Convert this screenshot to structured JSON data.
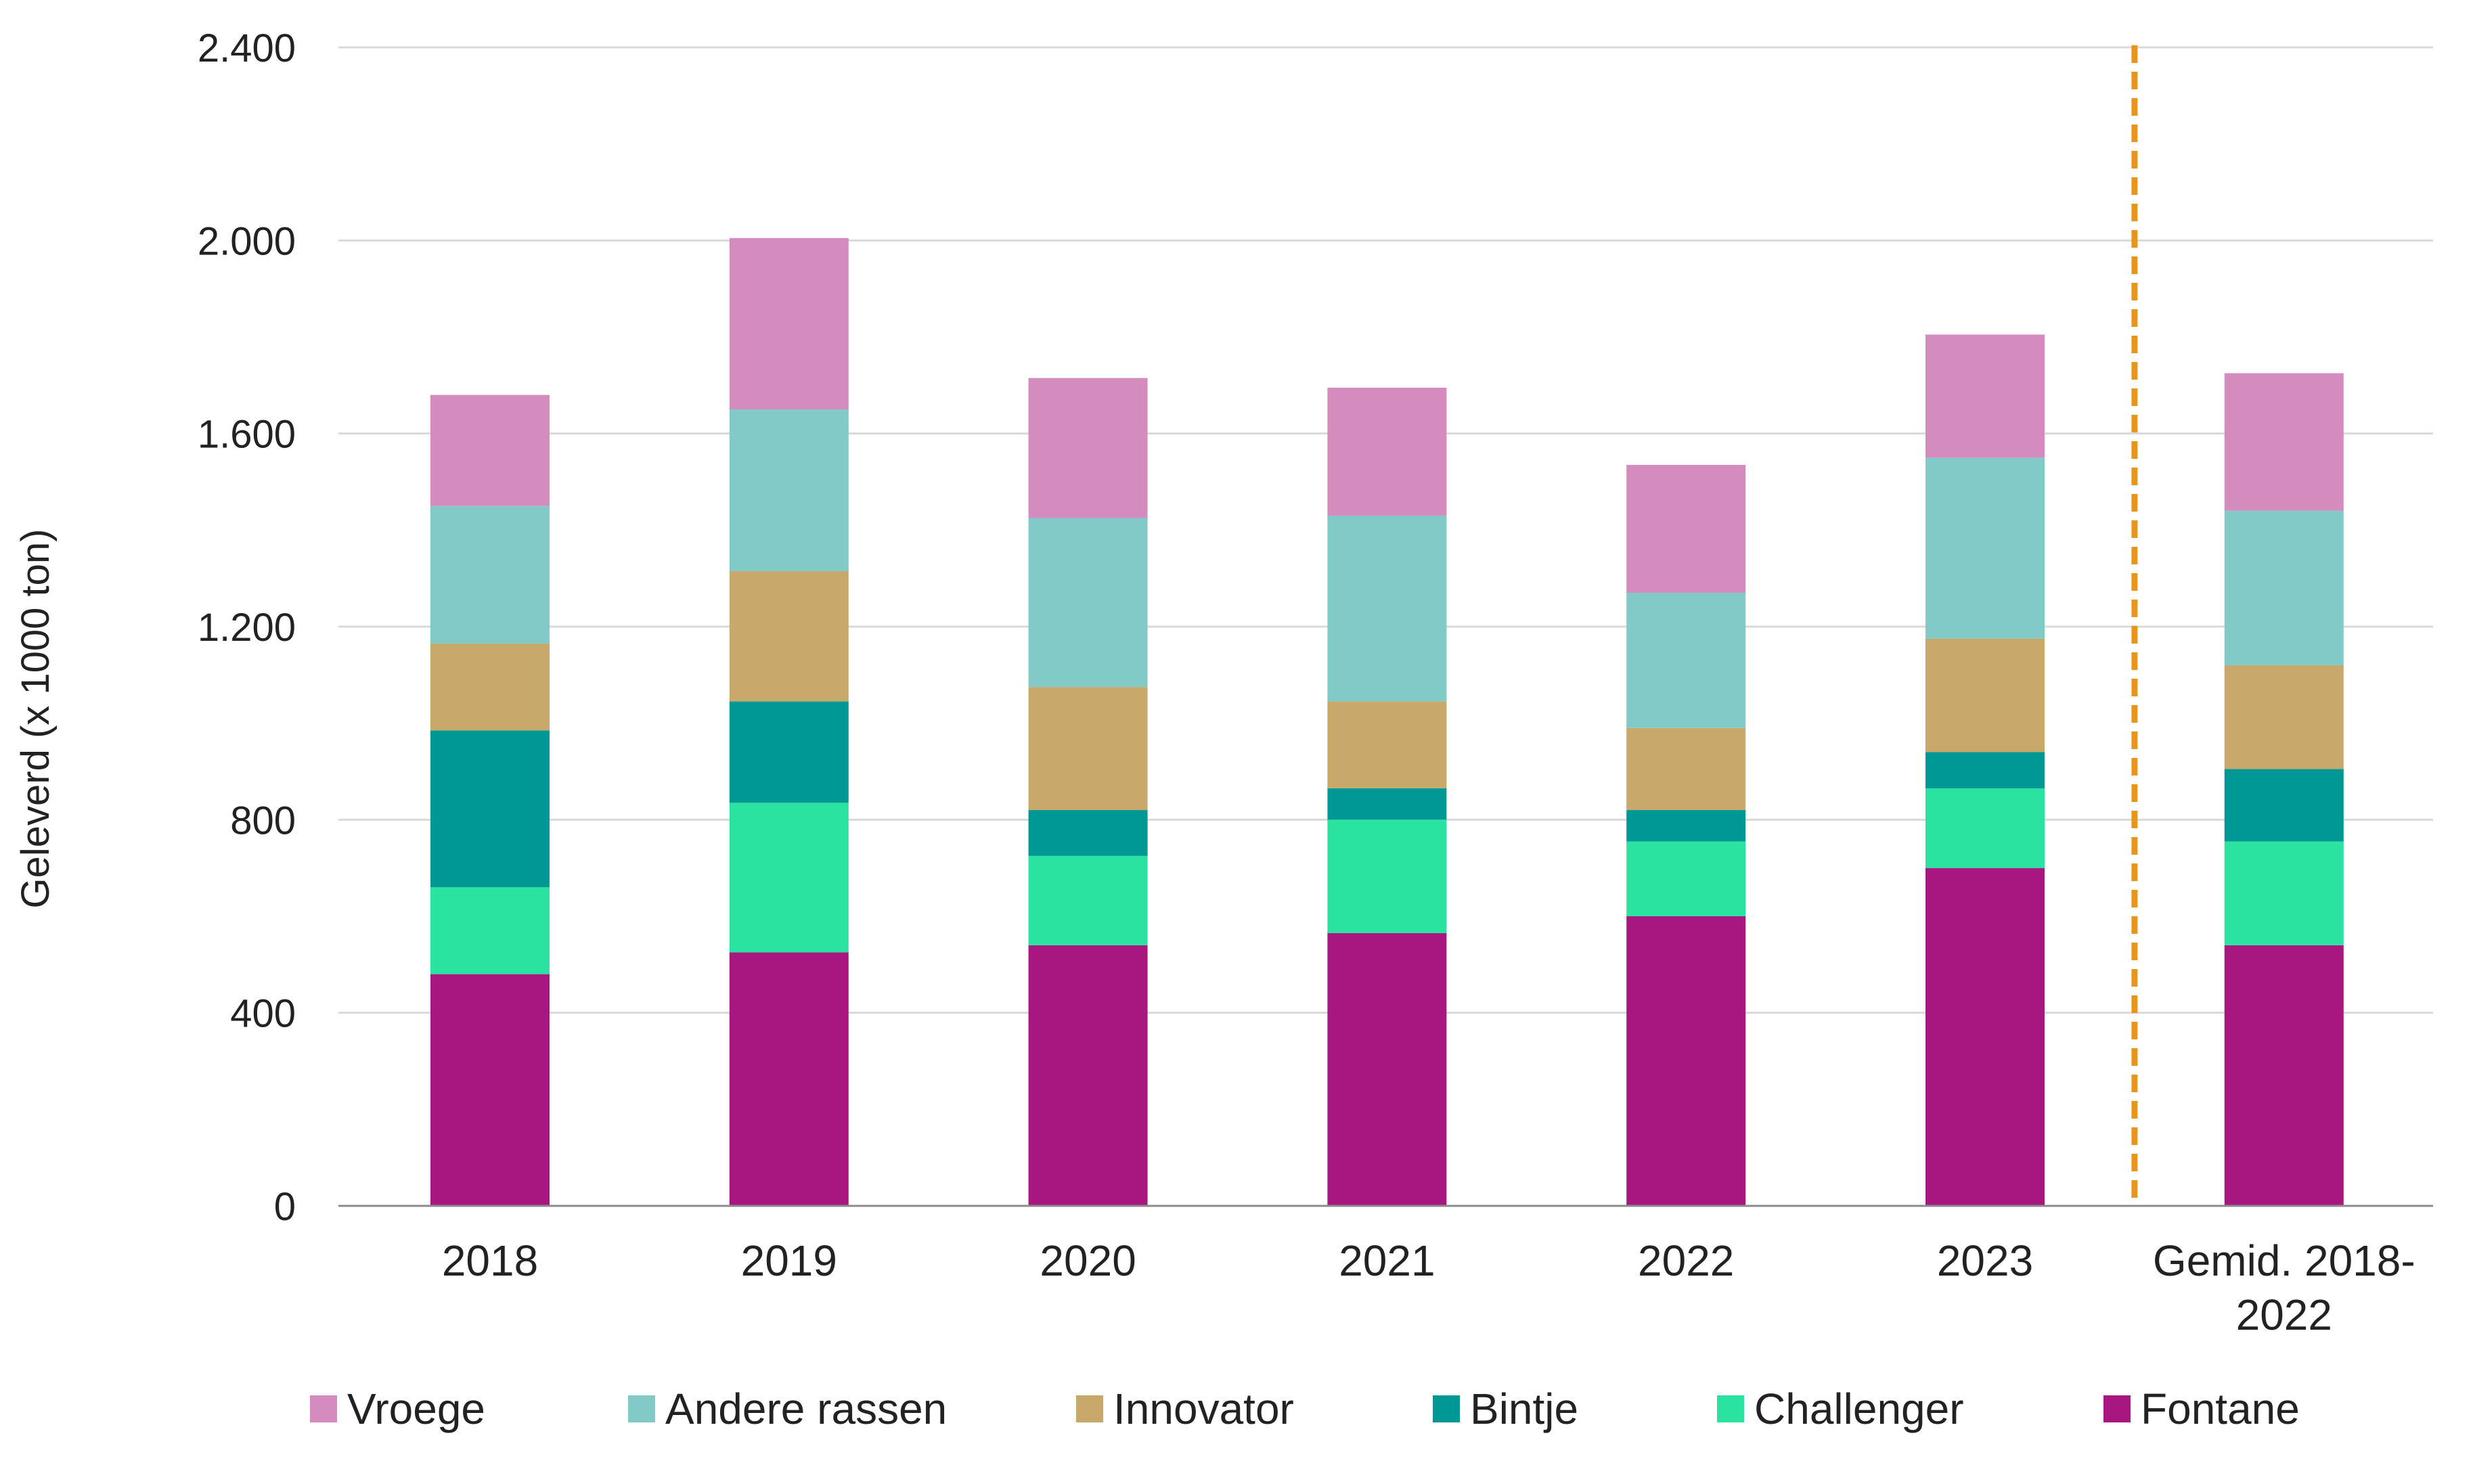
{
  "chart_data": {
    "type": "bar",
    "stacked": true,
    "categories": [
      "2018",
      "2019",
      "2020",
      "2021",
      "2022",
      "2023",
      "Gemid. 2018-2022"
    ],
    "category_lines": [
      [
        "2018"
      ],
      [
        "2019"
      ],
      [
        "2020"
      ],
      [
        "2021"
      ],
      [
        "2022"
      ],
      [
        "2023"
      ],
      [
        "Gemid. 2018-",
        "2022"
      ]
    ],
    "series": [
      {
        "name": "Fontane",
        "color": "#A8177F",
        "values": [
          480,
          525,
          540,
          565,
          600,
          700,
          540
        ]
      },
      {
        "name": "Challenger",
        "color": "#2BE3A0",
        "values": [
          180,
          310,
          185,
          235,
          155,
          165,
          215
        ]
      },
      {
        "name": "Bintje",
        "color": "#009894",
        "values": [
          325,
          210,
          95,
          65,
          65,
          75,
          150
        ]
      },
      {
        "name": "Innovator",
        "color": "#C8A86B",
        "values": [
          180,
          270,
          255,
          180,
          170,
          235,
          215
        ]
      },
      {
        "name": "Andere rassen",
        "color": "#81CAC7",
        "values": [
          285,
          335,
          350,
          385,
          280,
          375,
          320
        ]
      },
      {
        "name": "Vroege",
        "color": "#D48BBE",
        "values": [
          230,
          355,
          290,
          265,
          265,
          255,
          285
        ]
      }
    ],
    "legend_order": [
      "Vroege",
      "Andere rassen",
      "Innovator",
      "Bintje",
      "Challenger",
      "Fontane"
    ],
    "ylabel": "Geleverd (x 1000 ton)",
    "xlabel": "",
    "ylim": [
      0,
      2400
    ],
    "yticks": [
      0,
      400,
      800,
      1200,
      1600,
      2000,
      2400
    ],
    "ytick_labels": [
      "0",
      "400",
      "800",
      "1.200",
      "1.600",
      "2.000",
      "2.400"
    ],
    "separator_after_category": "2023",
    "separator_color": "#E8951B",
    "grid": true,
    "legend_position": "bottom"
  }
}
